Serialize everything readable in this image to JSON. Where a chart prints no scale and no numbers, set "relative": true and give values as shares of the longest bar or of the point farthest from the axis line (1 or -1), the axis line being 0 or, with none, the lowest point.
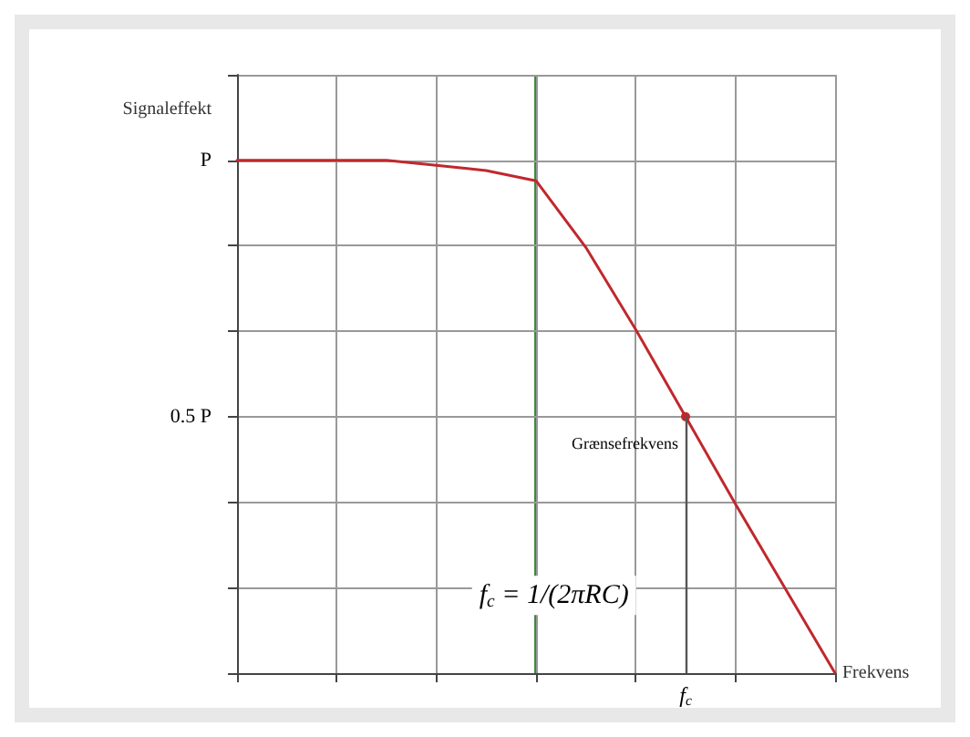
{
  "chart_data": {
    "type": "line",
    "xlabel": "Frekvens",
    "ylabel": "Signaleffekt",
    "categories": [
      null,
      null,
      null,
      null,
      null,
      null,
      null,
      null,
      null,
      null,
      null,
      null,
      null
    ],
    "relative": true,
    "grid": true,
    "marker": "none",
    "line_style": "solid",
    "series": [
      {
        "color": "#c0282d",
        "values": [
          1,
          1,
          1,
          1,
          0.99,
          0.98,
          0.96,
          0.83,
          0.67,
          0.5,
          0.33,
          0.165,
          0
        ]
      }
    ],
    "annotations": [
      "P",
      "0.5 P",
      "Grænsefrekvens",
      "f$_{c}$",
      "f$_{c}$ = 1/(2πRC)"
    ]
  }
}
